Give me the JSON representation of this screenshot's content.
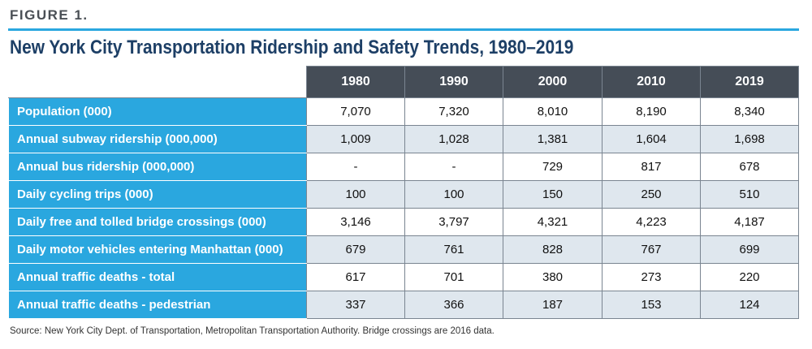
{
  "figure_label": "FIGURE 1.",
  "title": "New York City Transportation Ridership and Safety Trends, 1980–2019",
  "table": {
    "columns": [
      "1980",
      "1990",
      "2000",
      "2010",
      "2019"
    ],
    "rows": [
      {
        "label": "Population (000)",
        "values": [
          "7,070",
          "7,320",
          "8,010",
          "8,190",
          "8,340"
        ]
      },
      {
        "label": "Annual subway ridership (000,000)",
        "values": [
          "1,009",
          "1,028",
          "1,381",
          "1,604",
          "1,698"
        ]
      },
      {
        "label": "Annual bus ridership (000,000)",
        "values": [
          "-",
          "-",
          "729",
          "817",
          "678"
        ]
      },
      {
        "label": "Daily cycling trips (000)",
        "values": [
          "100",
          "100",
          "150",
          "250",
          "510"
        ]
      },
      {
        "label": "Daily free and tolled bridge crossings (000)",
        "values": [
          "3,146",
          "3,797",
          "4,321",
          "4,223",
          "4,187"
        ]
      },
      {
        "label": "Daily motor vehicles entering Manhattan (000)",
        "values": [
          "679",
          "761",
          "828",
          "767",
          "699"
        ]
      },
      {
        "label": "Annual traffic deaths - total",
        "values": [
          "617",
          "701",
          "380",
          "273",
          "220"
        ]
      },
      {
        "label": "Annual traffic deaths - pedestrian",
        "values": [
          "337",
          "366",
          "187",
          "153",
          "124"
        ]
      }
    ]
  },
  "source": "Source: New York City Dept. of Transportation, Metropolitan Transportation Authority. Bridge crossings are 2016 data.",
  "colors": {
    "accent_blue": "#2aa7df",
    "header_dark": "#454d57",
    "title_navy": "#1d3f66",
    "stripe": "#dfe7ee"
  }
}
